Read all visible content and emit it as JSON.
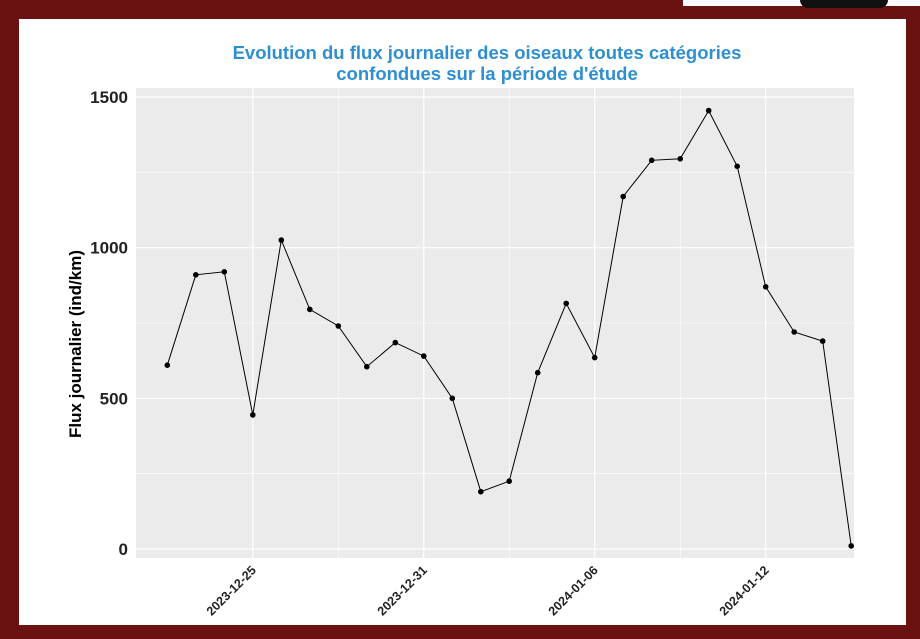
{
  "colors": {
    "frame": "#6a1212",
    "panel_background": "#ebebeb",
    "gridline": "#ffffff",
    "title": "#2e8fd0",
    "series_line": "#000000"
  },
  "chart_data": {
    "type": "line",
    "title": "Evolution du flux journalier des oiseaux toutes catégories",
    "subtitle": "confondues sur la période d'étude",
    "xlabel": "",
    "ylabel": "Flux journalier (ind/km)",
    "x_tick_labels": [
      "2023-12-25",
      "2023-12-31",
      "2024-01-06",
      "2024-01-12"
    ],
    "y_tick_labels": [
      "0",
      "500",
      "1000",
      "1500"
    ],
    "y_ticks": [
      0,
      500,
      1000,
      1500
    ],
    "ylim": [
      -30,
      1530
    ],
    "xlim": [
      "2023-12-21",
      "2024-01-15"
    ],
    "grid": true,
    "legend": "none",
    "series": [
      {
        "x": [
          "2023-12-22",
          "2023-12-23",
          "2023-12-24",
          "2023-12-25",
          "2023-12-26",
          "2023-12-27",
          "2023-12-28",
          "2023-12-29",
          "2023-12-30",
          "2023-12-31",
          "2024-01-01",
          "2024-01-02",
          "2024-01-03",
          "2024-01-04",
          "2024-01-05",
          "2024-01-06",
          "2024-01-07",
          "2024-01-08",
          "2024-01-09",
          "2024-01-10",
          "2024-01-11",
          "2024-01-12",
          "2024-01-13",
          "2024-01-14",
          "2024-01-15"
        ],
        "values": [
          610,
          910,
          920,
          445,
          1025,
          795,
          740,
          605,
          685,
          640,
          500,
          190,
          225,
          585,
          815,
          635,
          1170,
          1290,
          1295,
          1455,
          1270,
          870,
          720,
          690,
          10
        ]
      }
    ]
  }
}
